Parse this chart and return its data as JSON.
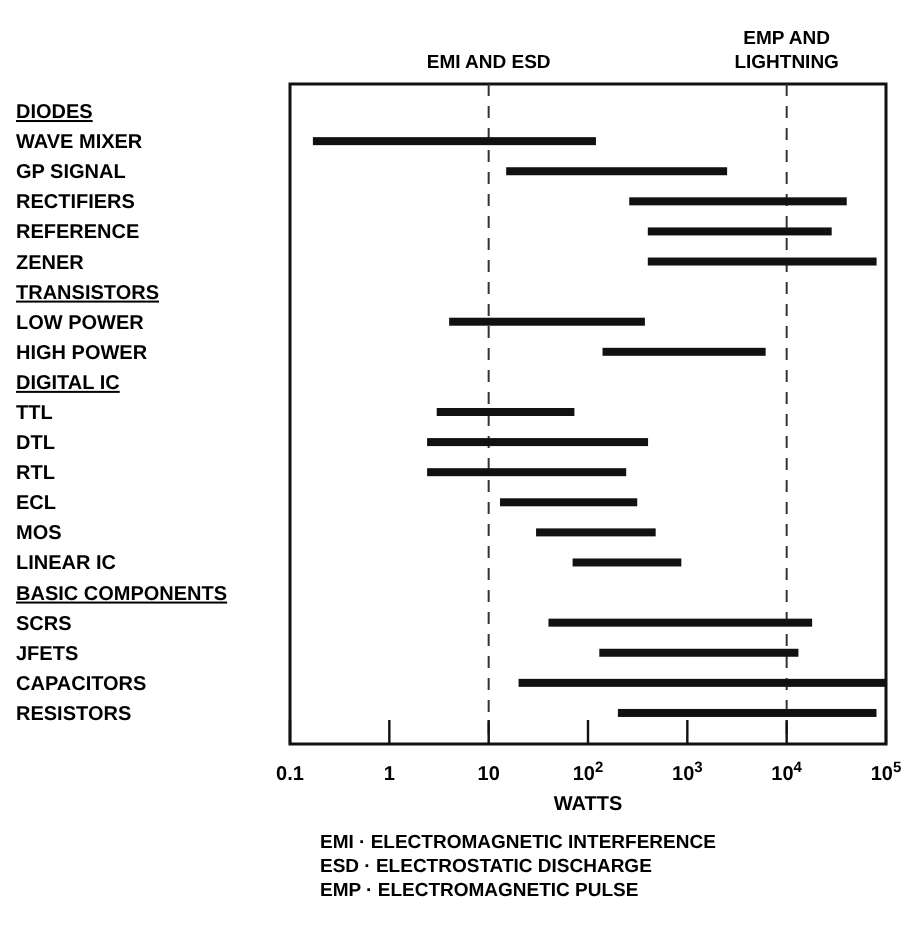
{
  "chart_data": {
    "type": "bar",
    "orientation": "horizontal",
    "log": "x",
    "color": "#111111",
    "xlabel": "WATTS",
    "categories": [
      "DIODES",
      "WAVE MIXER",
      "GP SIGNAL",
      "RECTIFIERS",
      "REFERENCE",
      "ZENER",
      "TRANSISTORS",
      "LOW POWER",
      "HIGH POWER",
      "DIGITAL IC",
      "TTL",
      "DTL",
      "RTL",
      "ECL",
      "MOS",
      "LINEAR IC",
      "BASIC COMPONENTS",
      "SCRS",
      "JFETS",
      "CAPACITORS",
      "RESISTORS"
    ],
    "base": [
      null,
      0.17,
      15,
      260,
      400,
      400,
      null,
      4,
      140,
      null,
      3,
      2.4,
      2.4,
      13,
      30,
      70,
      null,
      40,
      130,
      20,
      200
    ],
    "values": [
      null,
      120,
      2500,
      40000,
      28000,
      80000,
      null,
      370,
      6000,
      null,
      70,
      400,
      240,
      300,
      450,
      800,
      null,
      18000,
      13000,
      100000,
      80000
    ],
    "xlim": [
      0.1,
      100000
    ],
    "xticks": [
      0.1,
      1,
      10,
      {
        "value": 100,
        "label": "10$^{2}$"
      },
      {
        "value": 1000,
        "label": "10$^{3}$"
      },
      {
        "value": 10000,
        "label": "10$^{4}$"
      },
      {
        "value": 100000,
        "label": "10$^{5}$"
      }
    ],
    "ref_lines": [
      {
        "axis": "x",
        "value": 10,
        "label": "EMI AND ESD",
        "line_style": "dashed"
      },
      {
        "axis": "x",
        "value": 10000,
        "label": "EMP AND LIGHTNING",
        "line_style": "dashed"
      }
    ],
    "annotations": [
      "EMI · ELECTROMAGNETIC INTERFERENCE",
      "ESD · ELECTROSTATIC DISCHARGE",
      "EMP · ELECTROMAGNETIC PULSE"
    ]
  }
}
